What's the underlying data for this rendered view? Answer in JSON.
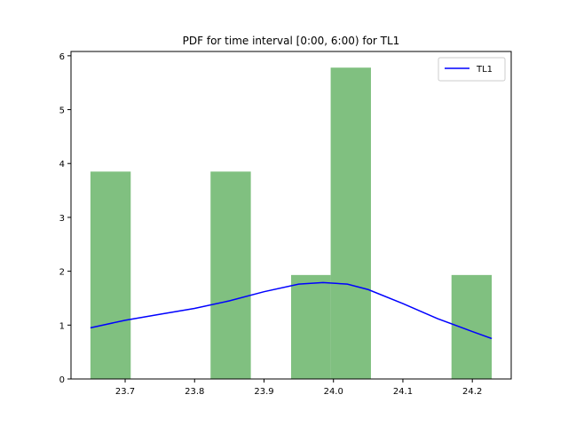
{
  "chart_data": {
    "type": "bar",
    "title": "PDF for time interval [0:00, 6:00) for TL1",
    "xlabel": "",
    "ylabel": "",
    "xlim": [
      23.622,
      24.256
    ],
    "ylim": [
      0,
      6.08
    ],
    "xticks": [
      23.7,
      23.8,
      23.9,
      24.0,
      24.1,
      24.2
    ],
    "xtick_labels": [
      "23.7",
      "23.8",
      "23.9",
      "24.0",
      "24.1",
      "24.2"
    ],
    "yticks": [
      0,
      1,
      2,
      3,
      4,
      5,
      6
    ],
    "ytick_labels": [
      "0",
      "1",
      "2",
      "3",
      "4",
      "5",
      "6"
    ],
    "grid": false,
    "legend_position": "upper right",
    "histogram": {
      "color": "#80c080",
      "bins": [
        {
          "x0": 23.65,
          "x1": 23.708,
          "value": 3.85
        },
        {
          "x0": 23.708,
          "x1": 23.765,
          "value": 0
        },
        {
          "x0": 23.765,
          "x1": 23.823,
          "value": 0
        },
        {
          "x0": 23.823,
          "x1": 23.881,
          "value": 3.85
        },
        {
          "x0": 23.881,
          "x1": 23.939,
          "value": 0
        },
        {
          "x0": 23.939,
          "x1": 23.996,
          "value": 1.93
        },
        {
          "x0": 23.996,
          "x1": 24.054,
          "value": 5.78
        },
        {
          "x0": 24.054,
          "x1": 24.112,
          "value": 0
        },
        {
          "x0": 24.112,
          "x1": 24.17,
          "value": 0
        },
        {
          "x0": 24.17,
          "x1": 24.228,
          "value": 1.93
        }
      ]
    },
    "series": [
      {
        "name": "TL1",
        "color": "#0000ff",
        "x": [
          23.65,
          23.7,
          23.75,
          23.8,
          23.85,
          23.9,
          23.95,
          23.985,
          24.02,
          24.05,
          24.1,
          24.15,
          24.2,
          24.228
        ],
        "y": [
          0.95,
          1.09,
          1.2,
          1.31,
          1.45,
          1.62,
          1.76,
          1.79,
          1.76,
          1.66,
          1.4,
          1.12,
          0.88,
          0.75
        ]
      }
    ]
  }
}
